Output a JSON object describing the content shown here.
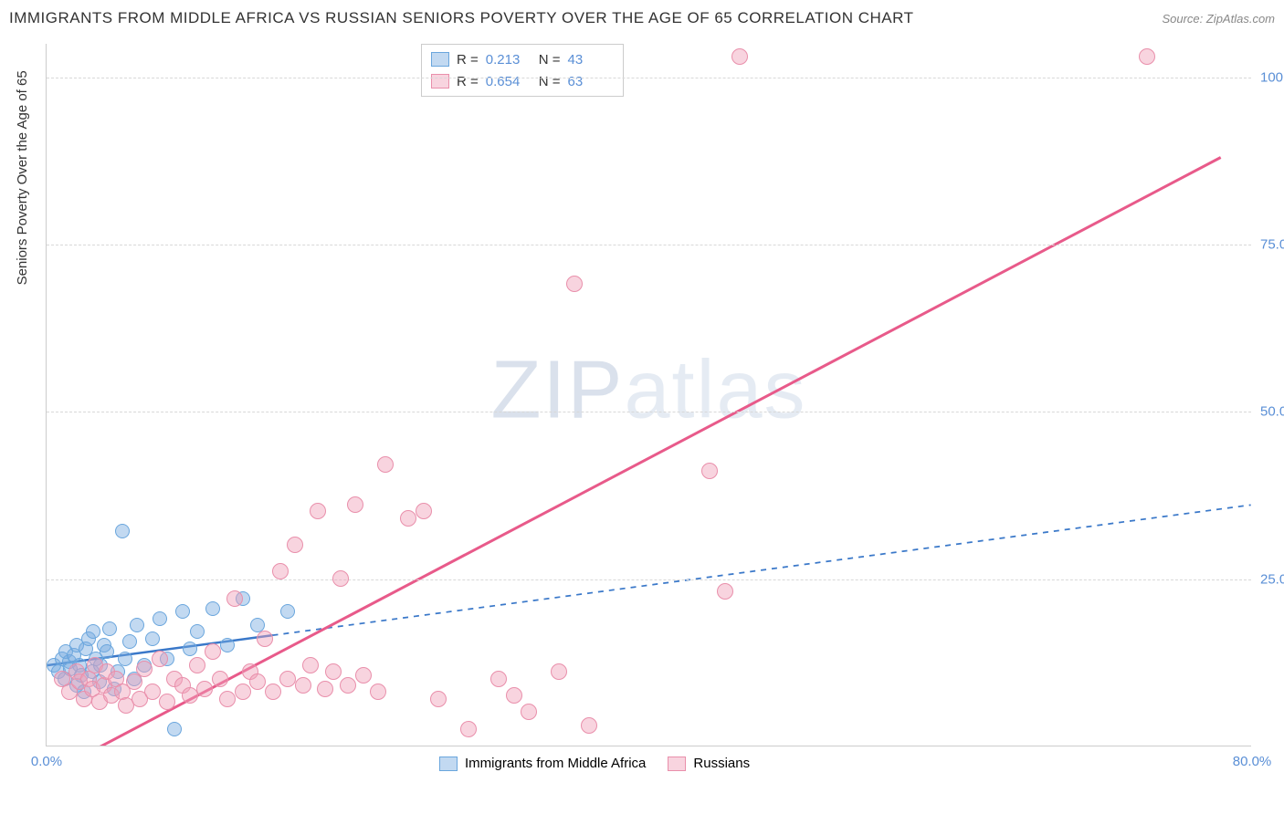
{
  "title": "IMMIGRANTS FROM MIDDLE AFRICA VS RUSSIAN SENIORS POVERTY OVER THE AGE OF 65 CORRELATION CHART",
  "source": "Source: ZipAtlas.com",
  "ylabel": "Seniors Poverty Over the Age of 65",
  "watermark_z": "ZIP",
  "watermark_rest": "atlas",
  "chart": {
    "type": "scatter",
    "xlim": [
      0,
      80
    ],
    "ylim": [
      0,
      105
    ],
    "xticks": [
      0,
      80
    ],
    "xtick_labels": [
      "0.0%",
      "80.0%"
    ],
    "yticks": [
      25,
      50,
      75,
      100
    ],
    "ytick_labels": [
      "25.0%",
      "50.0%",
      "75.0%",
      "100.0%"
    ],
    "background_color": "#ffffff",
    "grid_color": "#d8d8d8",
    "axis_color": "#cccccc",
    "tick_label_color": "#5a8fd6",
    "tick_fontsize": 15,
    "label_fontsize": 15,
    "series": [
      {
        "name": "Immigrants from Middle Africa",
        "marker_color_fill": "rgba(120,170,225,0.45)",
        "marker_color_stroke": "#6aa6dd",
        "marker_radius": 8,
        "line_color": "#3a78c9",
        "line_width": 2.5,
        "line_dash_extend": "6,6",
        "R": "0.213",
        "N": "43",
        "regression": {
          "x1": 0,
          "y1": 12,
          "x2_solid": 15,
          "y2_solid": 16.5,
          "x2": 80,
          "y2": 36
        },
        "points": [
          [
            0.5,
            12
          ],
          [
            0.8,
            11
          ],
          [
            1.0,
            13
          ],
          [
            1.2,
            10
          ],
          [
            1.3,
            14
          ],
          [
            1.5,
            12.5
          ],
          [
            1.6,
            11.5
          ],
          [
            1.8,
            13.5
          ],
          [
            2.0,
            9
          ],
          [
            2.0,
            15
          ],
          [
            2.2,
            12
          ],
          [
            2.3,
            10.5
          ],
          [
            2.5,
            8
          ],
          [
            2.6,
            14.5
          ],
          [
            2.8,
            16
          ],
          [
            3.0,
            11
          ],
          [
            3.1,
            17
          ],
          [
            3.3,
            13
          ],
          [
            3.5,
            9.5
          ],
          [
            3.6,
            12
          ],
          [
            3.8,
            15
          ],
          [
            4.0,
            14
          ],
          [
            4.2,
            17.5
          ],
          [
            4.5,
            8.5
          ],
          [
            4.7,
            11
          ],
          [
            5.0,
            32
          ],
          [
            5.2,
            13
          ],
          [
            5.5,
            15.5
          ],
          [
            5.8,
            10
          ],
          [
            6.0,
            18
          ],
          [
            6.5,
            12
          ],
          [
            7.0,
            16
          ],
          [
            7.5,
            19
          ],
          [
            8.0,
            13
          ],
          [
            8.5,
            2.5
          ],
          [
            9.0,
            20
          ],
          [
            9.5,
            14.5
          ],
          [
            10,
            17
          ],
          [
            11,
            20.5
          ],
          [
            12,
            15
          ],
          [
            13,
            22
          ],
          [
            14,
            18
          ],
          [
            16,
            20
          ]
        ]
      },
      {
        "name": "Russians",
        "marker_color_fill": "rgba(240,160,185,0.45)",
        "marker_color_stroke": "#e98fab",
        "marker_radius": 9,
        "line_color": "#e85a8a",
        "line_width": 3,
        "R": "0.654",
        "N": "63",
        "regression": {
          "x1": 2,
          "y1": -2,
          "x2": 78,
          "y2": 88
        },
        "points": [
          [
            1,
            10
          ],
          [
            1.5,
            8
          ],
          [
            2,
            11
          ],
          [
            2.2,
            9.5
          ],
          [
            2.5,
            7
          ],
          [
            2.8,
            10
          ],
          [
            3,
            8.5
          ],
          [
            3.2,
            12
          ],
          [
            3.5,
            6.5
          ],
          [
            3.8,
            9
          ],
          [
            4,
            11
          ],
          [
            4.3,
            7.5
          ],
          [
            4.6,
            10
          ],
          [
            5,
            8
          ],
          [
            5.3,
            6
          ],
          [
            5.8,
            9.5
          ],
          [
            6.2,
            7
          ],
          [
            6.5,
            11.5
          ],
          [
            7,
            8
          ],
          [
            7.5,
            13
          ],
          [
            8,
            6.5
          ],
          [
            8.5,
            10
          ],
          [
            9,
            9
          ],
          [
            9.5,
            7.5
          ],
          [
            10,
            12
          ],
          [
            10.5,
            8.5
          ],
          [
            11,
            14
          ],
          [
            11.5,
            10
          ],
          [
            12,
            7
          ],
          [
            12.5,
            22
          ],
          [
            13,
            8
          ],
          [
            13.5,
            11
          ],
          [
            14,
            9.5
          ],
          [
            14.5,
            16
          ],
          [
            15,
            8
          ],
          [
            15.5,
            26
          ],
          [
            16,
            10
          ],
          [
            16.5,
            30
          ],
          [
            17,
            9
          ],
          [
            17.5,
            12
          ],
          [
            18,
            35
          ],
          [
            18.5,
            8.5
          ],
          [
            19,
            11
          ],
          [
            19.5,
            25
          ],
          [
            20,
            9
          ],
          [
            20.5,
            36
          ],
          [
            21,
            10.5
          ],
          [
            22,
            8
          ],
          [
            22.5,
            42
          ],
          [
            24,
            34
          ],
          [
            25,
            35
          ],
          [
            26,
            7
          ],
          [
            28,
            2.5
          ],
          [
            30,
            10
          ],
          [
            31,
            7.5
          ],
          [
            32,
            5
          ],
          [
            34,
            11
          ],
          [
            35,
            69
          ],
          [
            36,
            3
          ],
          [
            44,
            41
          ],
          [
            45,
            23
          ],
          [
            46,
            103
          ],
          [
            73,
            103
          ]
        ]
      }
    ]
  },
  "legend_top": {
    "rows": [
      {
        "swatch_fill": "rgba(120,170,225,0.45)",
        "swatch_stroke": "#6aa6dd",
        "r_label": "R =",
        "r_val": "0.213",
        "n_label": "N =",
        "n_val": "43"
      },
      {
        "swatch_fill": "rgba(240,160,185,0.45)",
        "swatch_stroke": "#e98fab",
        "r_label": "R =",
        "r_val": "0.654",
        "n_label": "N =",
        "n_val": "63"
      }
    ]
  },
  "legend_bottom": {
    "items": [
      {
        "swatch_fill": "rgba(120,170,225,0.45)",
        "swatch_stroke": "#6aa6dd",
        "label": "Immigrants from Middle Africa"
      },
      {
        "swatch_fill": "rgba(240,160,185,0.45)",
        "swatch_stroke": "#e98fab",
        "label": "Russians"
      }
    ]
  }
}
